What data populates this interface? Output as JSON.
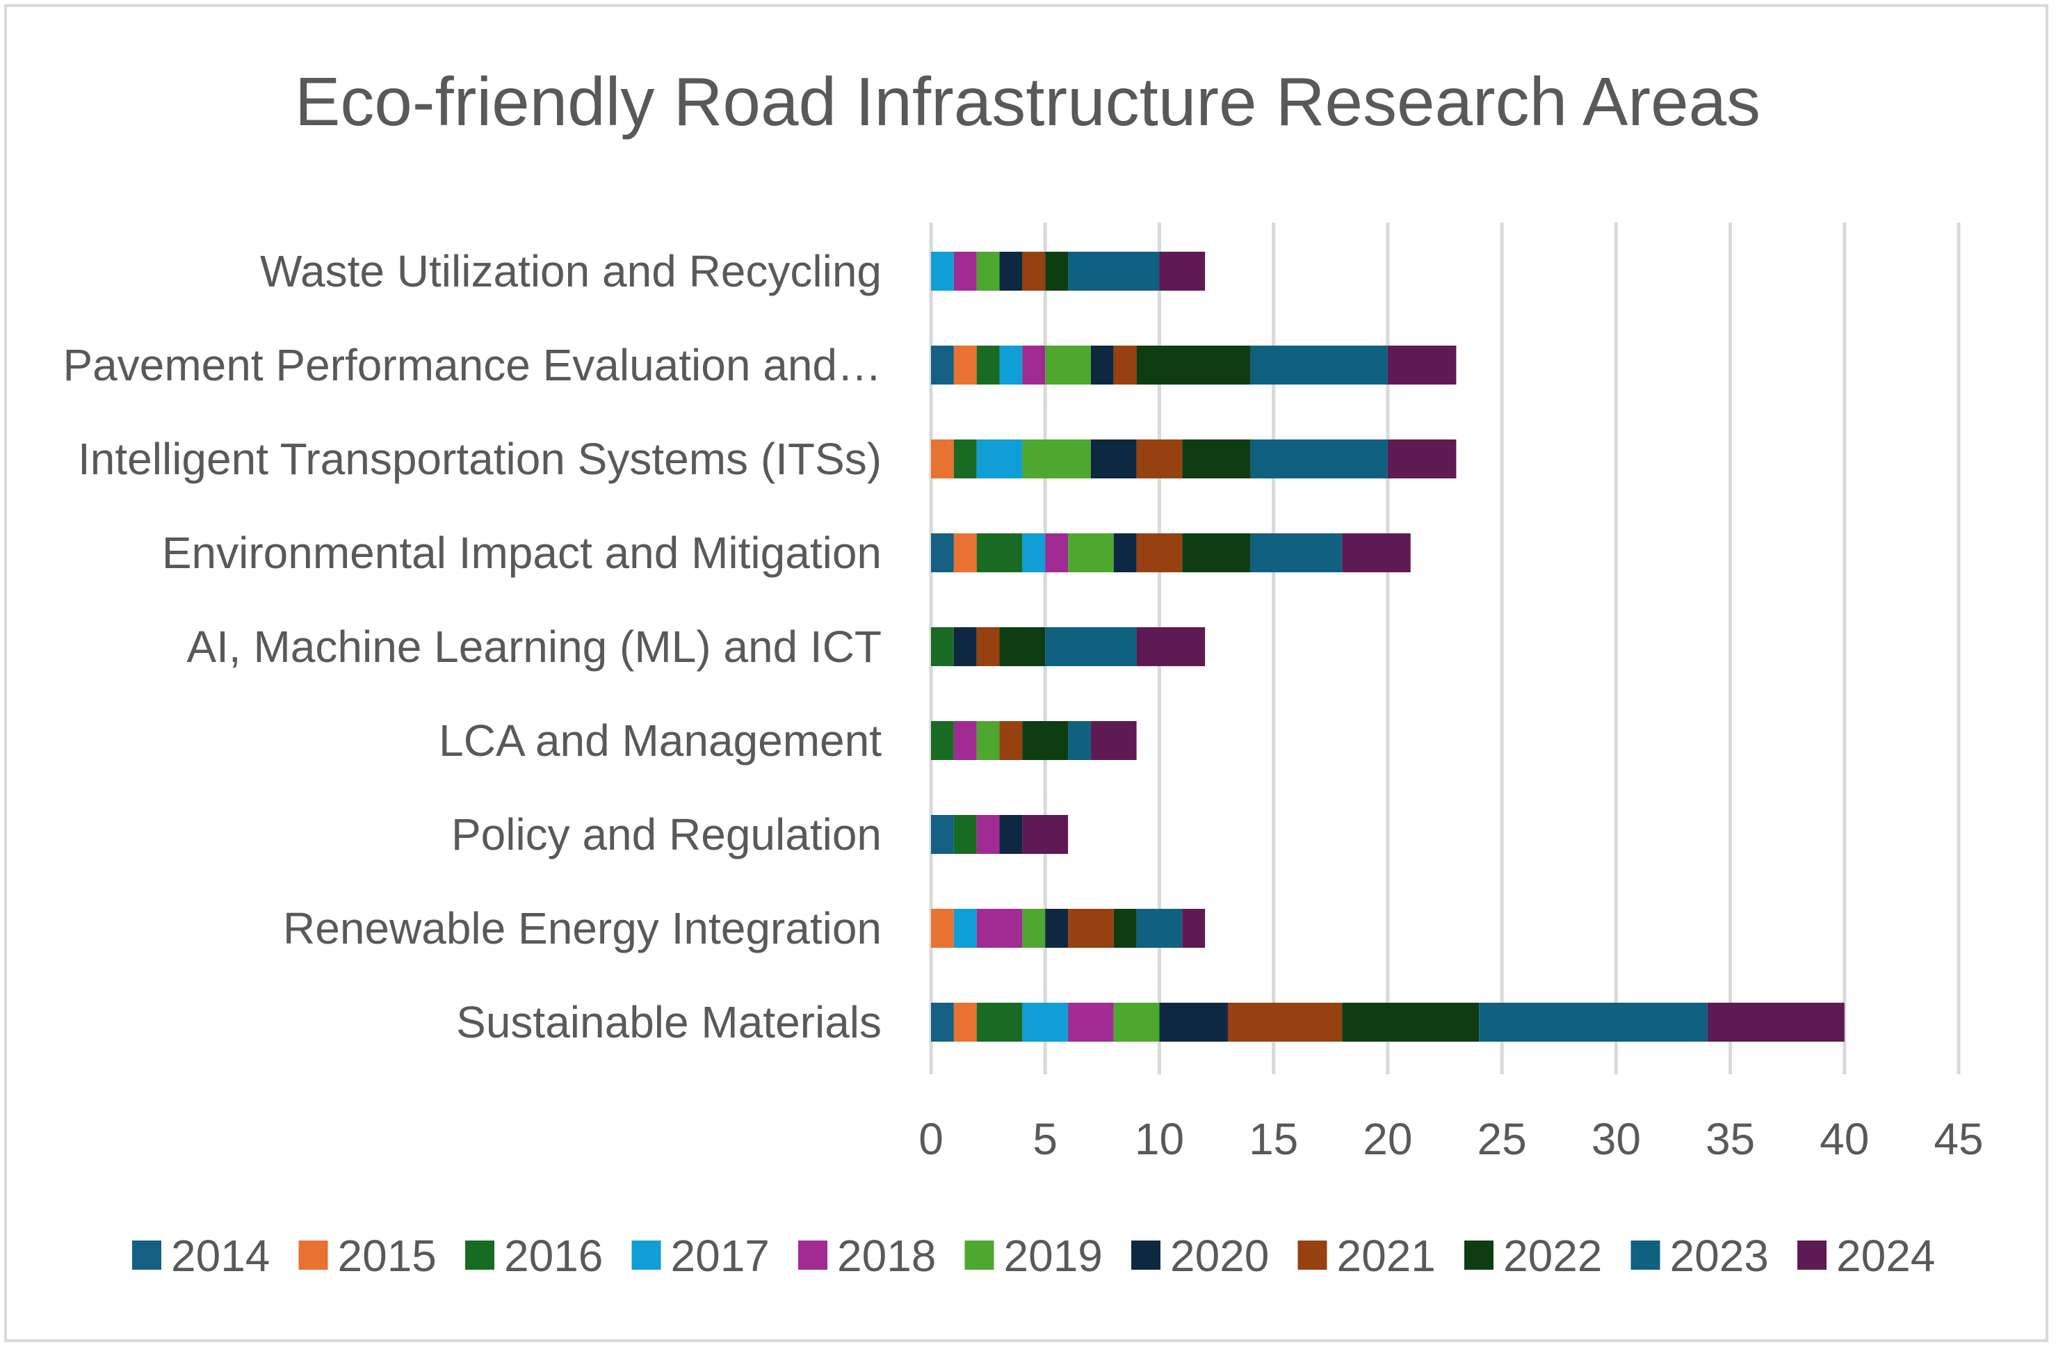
{
  "chart_data": {
    "type": "bar",
    "orientation": "horizontal",
    "stacked": true,
    "title": "Eco-friendly Road Infrastructure Research Areas",
    "xlabel": "",
    "ylabel": "",
    "xlim": [
      0,
      45
    ],
    "xticks": [
      0,
      5,
      10,
      15,
      20,
      25,
      30,
      35,
      40,
      45
    ],
    "grid": true,
    "legend_position": "bottom",
    "categories": [
      "Waste Utilization and Recycling",
      "Pavement Performance Evaluation and…",
      "Intelligent Transportation Systems (ITSs)",
      "Environmental Impact and Mitigation",
      "AI, Machine Learning (ML) and ICT",
      "LCA  and Management",
      "Policy and  Regulation",
      "Renewable Energy Integration",
      "Sustainable Materials"
    ],
    "series": [
      {
        "name": "2014",
        "color": "#156082",
        "values": [
          0,
          1,
          0,
          1,
          0,
          0,
          1,
          0,
          1
        ]
      },
      {
        "name": "2015",
        "color": "#E97132",
        "values": [
          0,
          1,
          1,
          1,
          0,
          0,
          0,
          1,
          1
        ]
      },
      {
        "name": "2016",
        "color": "#196B24",
        "values": [
          0,
          1,
          1,
          2,
          1,
          1,
          1,
          0,
          2
        ]
      },
      {
        "name": "2017",
        "color": "#0F9ED5",
        "values": [
          1,
          1,
          2,
          1,
          0,
          0,
          0,
          1,
          2
        ]
      },
      {
        "name": "2018",
        "color": "#A02B93",
        "values": [
          1,
          1,
          0,
          1,
          0,
          1,
          1,
          2,
          2
        ]
      },
      {
        "name": "2019",
        "color": "#4EA72E",
        "values": [
          1,
          2,
          3,
          2,
          0,
          1,
          0,
          1,
          2
        ]
      },
      {
        "name": "2020",
        "color": "#0E2841",
        "values": [
          1,
          1,
          2,
          1,
          1,
          0,
          1,
          1,
          3
        ]
      },
      {
        "name": "2021",
        "color": "#974010",
        "values": [
          1,
          1,
          2,
          2,
          1,
          1,
          0,
          2,
          5
        ]
      },
      {
        "name": "2022",
        "color": "#0F3D12",
        "values": [
          1,
          5,
          3,
          3,
          2,
          2,
          0,
          1,
          6
        ]
      },
      {
        "name": "2023",
        "color": "#10607F",
        "values": [
          4,
          6,
          6,
          4,
          4,
          1,
          0,
          2,
          10
        ]
      },
      {
        "name": "2024",
        "color": "#5E1A53",
        "values": [
          2,
          3,
          3,
          3,
          3,
          2,
          2,
          1,
          6
        ]
      }
    ]
  }
}
